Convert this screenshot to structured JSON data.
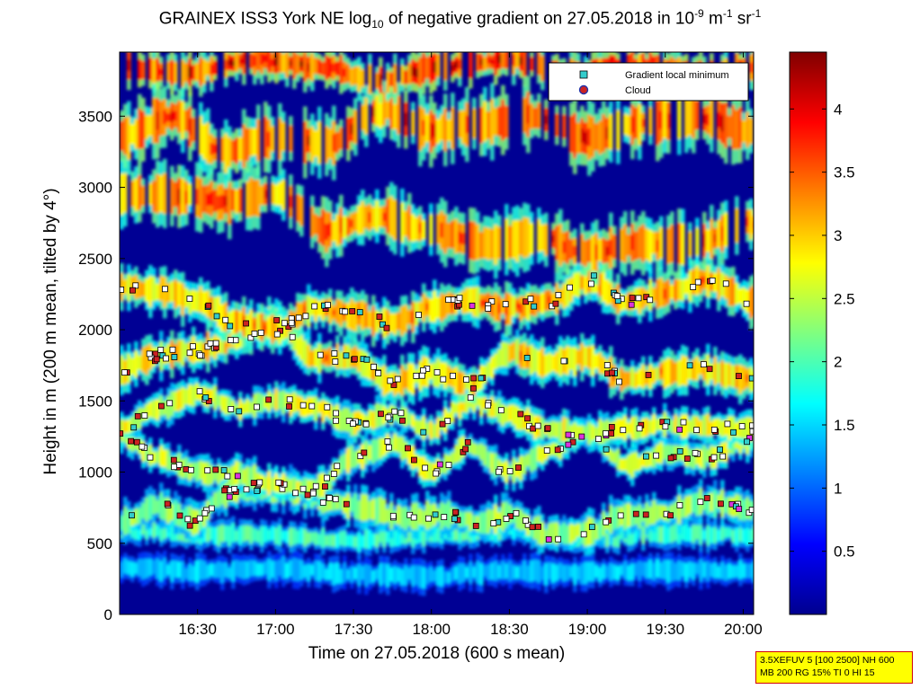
{
  "title": {
    "prefix": "GRAINEX ISS3 York NE log",
    "sub": "10",
    "mid": " of negative gradient on 27.05.2018 in 10",
    "sup1": "-9",
    "unit1": " m",
    "sup2": "-1",
    "unit2": " sr",
    "sup3": "-1"
  },
  "info_box": {
    "line1": "3.5XEFUV 5 [100 2500] NH 600",
    "line2": "MB 200 RG 15% TI 0 HI 15"
  },
  "colors": {
    "gradient_marker": "#33cccc",
    "cloud_marker_fill": "#cc2222",
    "cloud_marker_edge": "#2233aa",
    "background_field": "#000a8c",
    "info_box_fill": "#ffff00",
    "info_box_border": "#d00000"
  },
  "chart_data": {
    "type": "heatmap",
    "xlabel": "Time on 27.05.2018 (600 s mean)",
    "ylabel": "Height in m (200 m mean, tilted by 4°)",
    "xlim_minutes": [
      960,
      1204
    ],
    "ylim": [
      0,
      3950
    ],
    "x_ticks": [
      "16:30",
      "17:00",
      "17:30",
      "18:00",
      "18:30",
      "19:00",
      "19:30",
      "20:00"
    ],
    "x_tick_values_minutes": [
      990,
      1020,
      1050,
      1080,
      1110,
      1140,
      1170,
      1200
    ],
    "y_ticks": [
      0,
      500,
      1000,
      1500,
      2000,
      2500,
      3000,
      3500
    ],
    "colorbar": {
      "min": 0,
      "max": 4.45,
      "ticks": [
        0.5,
        1,
        1.5,
        2,
        2.5,
        3,
        3.5,
        4
      ],
      "tick_labels": [
        "0.5",
        "1",
        "1.5",
        "2",
        "2.5",
        "3",
        "3.5",
        "4"
      ],
      "colormap": "jet"
    },
    "legend": {
      "position": "top-right",
      "entries": [
        {
          "label": "Gradient local minimum",
          "marker": "square"
        },
        {
          "label": "Cloud",
          "marker": "circle"
        }
      ]
    },
    "layers": [
      {
        "x": [
          960,
          990,
          1020,
          1050,
          1080,
          1110,
          1140,
          1170,
          1204
        ],
        "y": [
          330,
          300,
          320,
          280,
          270,
          300,
          290,
          310,
          300
        ],
        "level": 1.5,
        "thickness": 120
      },
      {
        "x": [
          960,
          990,
          1020,
          1050,
          1080,
          1110,
          1140,
          1170,
          1204
        ],
        "y": [
          600,
          560,
          560,
          520,
          560,
          590,
          540,
          570,
          560
        ],
        "level": 2.0,
        "thickness": 110
      },
      {
        "x": [
          960,
          975,
          990,
          1000,
          1010,
          1025,
          1040,
          1055,
          1070,
          1085,
          1100,
          1110,
          1125,
          1140,
          1155,
          1170,
          1185,
          1204
        ],
        "y": [
          640,
          760,
          650,
          850,
          860,
          880,
          800,
          740,
          680,
          700,
          650,
          690,
          560,
          580,
          700,
          710,
          790,
          740
        ],
        "level": 2.4,
        "thickness": 150
      },
      {
        "x": [
          960,
          975,
          990,
          1005,
          1020,
          1035,
          1050,
          1065,
          1080,
          1095,
          1110,
          1125,
          1140,
          1155,
          1170,
          1185,
          1204
        ],
        "y": [
          1250,
          1100,
          1000,
          980,
          920,
          880,
          1100,
          1200,
          1010,
          1180,
          1000,
          1150,
          1280,
          1050,
          1130,
          1100,
          1230
        ],
        "level": 2.6,
        "thickness": 130
      },
      {
        "x": [
          960,
          975,
          990,
          1005,
          1020,
          1035,
          1050,
          1065,
          1080,
          1095,
          1110,
          1125,
          1140,
          1155,
          1170,
          1185,
          1204
        ],
        "y": [
          1300,
          1450,
          1550,
          1450,
          1500,
          1450,
          1350,
          1400,
          1300,
          1500,
          1400,
          1300,
          1280,
          1300,
          1330,
          1320,
          1300
        ],
        "level": 2.7,
        "thickness": 130
      },
      {
        "x": [
          960,
          975,
          990,
          1005,
          1020,
          1035,
          1050,
          1065,
          1080,
          1095,
          1110,
          1125,
          1140,
          1155,
          1170,
          1185,
          1204
        ],
        "y": [
          1700,
          1820,
          1850,
          1950,
          2050,
          1800,
          1800,
          1620,
          1700,
          1620,
          1840,
          1760,
          1800,
          1650,
          1700,
          1720,
          1650
        ],
        "level": 3.0,
        "thickness": 160
      },
      {
        "x": [
          960,
          975,
          990,
          1005,
          1020,
          1035,
          1050,
          1065,
          1080,
          1095,
          1110,
          1125,
          1140,
          1155,
          1170,
          1185,
          1204
        ],
        "y": [
          2300,
          2280,
          2200,
          2050,
          2000,
          2150,
          2100,
          2050,
          2150,
          2200,
          2150,
          2200,
          2350,
          2200,
          2250,
          2350,
          2200
        ],
        "level": 3.1,
        "thickness": 170
      },
      {
        "x": [
          960,
          980,
          1000,
          1020,
          1040,
          1060,
          1080,
          1100,
          1120,
          1140,
          1160,
          1180,
          1204
        ],
        "y": [
          2950,
          2950,
          2900,
          2950,
          2700,
          2800,
          2700,
          2600,
          2650,
          2550,
          2600,
          2600,
          2750
        ],
        "level": 3.3,
        "thickness": 220
      },
      {
        "x": [
          960,
          980,
          1000,
          1020,
          1040,
          1060,
          1080,
          1100,
          1120,
          1140,
          1160,
          1180,
          1204
        ],
        "y": [
          3350,
          3500,
          3250,
          3350,
          3300,
          3550,
          3400,
          3450,
          3500,
          3350,
          3450,
          3500,
          3400
        ],
        "level": 3.4,
        "thickness": 240
      },
      {
        "x": [
          960,
          985,
          1010,
          1035,
          1060,
          1085,
          1110,
          1135,
          1160,
          1185,
          1204
        ],
        "y": [
          3850,
          3800,
          3900,
          3850,
          3750,
          3850,
          3900,
          3800,
          3850,
          3800,
          3850
        ],
        "level": 3.6,
        "thickness": 160
      }
    ]
  }
}
